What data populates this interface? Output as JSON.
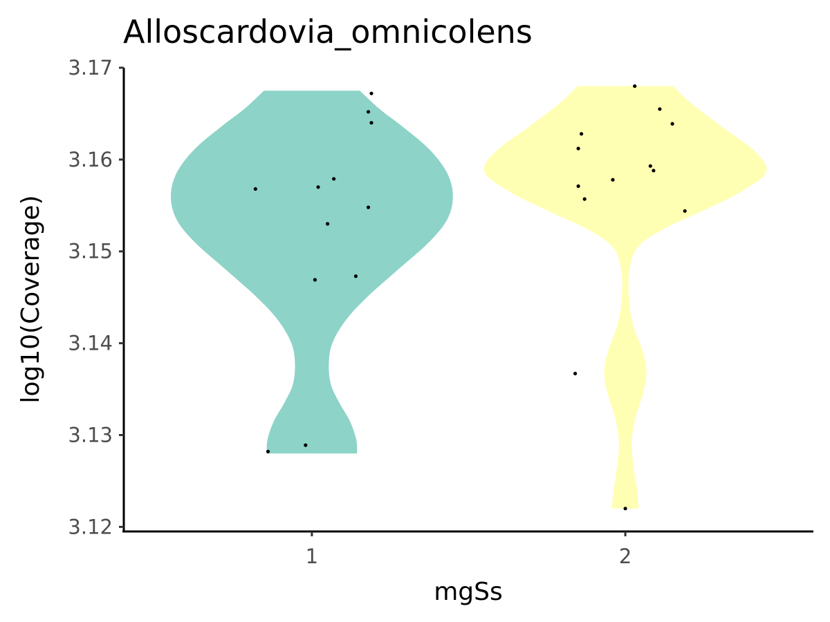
{
  "chart_data": {
    "type": "violin",
    "title": "Alloscardovia_omnicolens",
    "xlabel": "mgSs",
    "ylabel": "log10(Coverage)",
    "categories": [
      "1",
      "2"
    ],
    "ylim": [
      3.1195,
      3.17
    ],
    "yticks": [
      "3.12",
      "3.13",
      "3.14",
      "3.15",
      "3.16",
      "3.17"
    ],
    "yticks_values": [
      3.12,
      3.13,
      3.14,
      3.15,
      3.16,
      3.17
    ],
    "grid": false,
    "legend": "none",
    "colors": {
      "1": "#8dd3c7",
      "2": "#ffffb3",
      "points": "#000000"
    },
    "series": [
      {
        "category": "1",
        "ymin": 3.128,
        "ymax": 3.1675,
        "density": [
          [
            3.128,
            0.32
          ],
          [
            3.1295,
            0.315
          ],
          [
            3.1315,
            0.27
          ],
          [
            3.1335,
            0.195
          ],
          [
            3.1355,
            0.135
          ],
          [
            3.1378,
            0.12
          ],
          [
            3.14,
            0.145
          ],
          [
            3.1425,
            0.24
          ],
          [
            3.145,
            0.39
          ],
          [
            3.148,
            0.61
          ],
          [
            3.151,
            0.83
          ],
          [
            3.1535,
            0.96
          ],
          [
            3.156,
            1.0
          ],
          [
            3.1585,
            0.96
          ],
          [
            3.161,
            0.84
          ],
          [
            3.1635,
            0.65
          ],
          [
            3.1655,
            0.48
          ],
          [
            3.1675,
            0.34
          ]
        ],
        "points": [
          [
            0.86,
            3.1282
          ],
          [
            0.98,
            3.1289
          ],
          [
            1.01,
            3.1469
          ],
          [
            1.14,
            3.1473
          ],
          [
            1.05,
            3.153
          ],
          [
            1.18,
            3.1548
          ],
          [
            0.82,
            3.1568
          ],
          [
            1.02,
            3.157
          ],
          [
            1.07,
            3.1579
          ],
          [
            1.19,
            3.164
          ],
          [
            1.18,
            3.1652
          ],
          [
            1.19,
            3.1672
          ]
        ]
      },
      {
        "category": "2",
        "ymin": 3.122,
        "ymax": 3.168,
        "density": [
          [
            3.122,
            0.095
          ],
          [
            3.1238,
            0.085
          ],
          [
            3.1262,
            0.062
          ],
          [
            3.129,
            0.045
          ],
          [
            3.1318,
            0.07
          ],
          [
            3.1345,
            0.125
          ],
          [
            3.1368,
            0.15
          ],
          [
            3.139,
            0.125
          ],
          [
            3.142,
            0.055
          ],
          [
            3.145,
            0.025
          ],
          [
            3.148,
            0.03
          ],
          [
            3.1505,
            0.09
          ],
          [
            3.1525,
            0.28
          ],
          [
            3.1545,
            0.56
          ],
          [
            3.1565,
            0.82
          ],
          [
            3.1587,
            1.0
          ],
          [
            3.161,
            0.91
          ],
          [
            3.1635,
            0.69
          ],
          [
            3.1662,
            0.46
          ],
          [
            3.168,
            0.34
          ]
        ],
        "points": [
          [
            2.0,
            3.122
          ],
          [
            1.84,
            3.1367
          ],
          [
            2.19,
            3.1544
          ],
          [
            1.87,
            3.1557
          ],
          [
            1.85,
            3.1571
          ],
          [
            1.96,
            3.1578
          ],
          [
            2.09,
            3.1588
          ],
          [
            2.08,
            3.1593
          ],
          [
            1.85,
            3.1612
          ],
          [
            1.86,
            3.1628
          ],
          [
            2.15,
            3.1639
          ],
          [
            2.11,
            3.1655
          ],
          [
            2.03,
            3.168
          ]
        ]
      }
    ]
  }
}
